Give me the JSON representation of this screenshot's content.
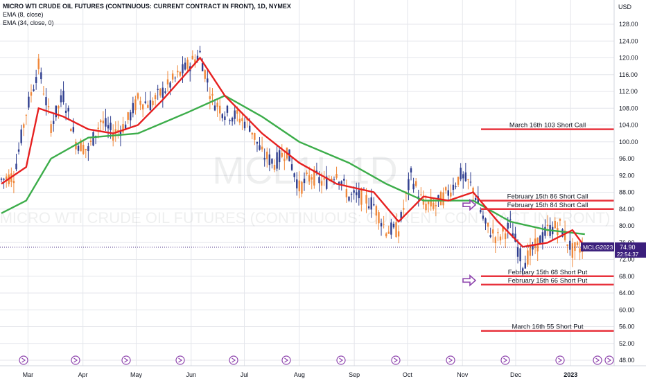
{
  "header": {
    "title": "MICRO WTI CRUDE OIL FUTURES (CONTINUOUS: CURRENT CONTRACT IN FRONT), 1D, NYMEX",
    "ema_fast": "EMA (8, close)",
    "ema_slow": "EMA (34, close, 0)"
  },
  "watermark": {
    "symbol": "MCL1!, 1D",
    "description": "MICRO WTI CRUDE OIL FUTURES (CONTINUOUS: CURRENT CONTRACT IN FRONT)"
  },
  "price_axis": {
    "currency": "USD",
    "ticks": [
      "128.00",
      "124.00",
      "120.00",
      "116.00",
      "112.00",
      "108.00",
      "104.00",
      "100.00",
      "96.00",
      "92.00",
      "88.00",
      "84.00",
      "80.00",
      "76.00",
      "72.00",
      "68.00",
      "64.00",
      "60.00",
      "56.00",
      "52.00",
      "48.00"
    ]
  },
  "time_axis": {
    "labels": [
      "Mar",
      "Apr",
      "May",
      "Jun",
      "Jul",
      "Aug",
      "Sep",
      "Oct",
      "Nov",
      "Dec",
      "2023"
    ]
  },
  "price_badge": {
    "symbol": "MCLG2023",
    "price": "74.90",
    "countdown": "22:54:37"
  },
  "colors": {
    "up": "#2f3e8f",
    "down": "#f0883a",
    "ema_fast": "#e62020",
    "ema_slow": "#3cad4a",
    "level_line": "#e8323c",
    "badge": "#3b1f7c",
    "arrow": "#8e44ad",
    "grid": "#e4e6eb"
  },
  "chart_data": {
    "type": "candlestick",
    "title": "MICRO WTI CRUDE OIL FUTURES (CONTINUOUS: CURRENT CONTRACT IN FRONT), 1D, NYMEX",
    "ylabel": "USD",
    "ylim": [
      47,
      131
    ],
    "x_range": [
      "2022-02-14",
      "2023-01-13"
    ],
    "last_price": 74.9,
    "series": [
      {
        "name": "Price",
        "points": [
          {
            "date": "2022-02-14",
            "close": 91
          },
          {
            "date": "2022-02-21",
            "close": 92
          },
          {
            "date": "2022-02-28",
            "close": 107
          },
          {
            "date": "2022-03-07",
            "close": 118
          },
          {
            "date": "2022-03-14",
            "close": 104
          },
          {
            "date": "2022-03-21",
            "close": 111
          },
          {
            "date": "2022-03-28",
            "close": 100
          },
          {
            "date": "2022-04-04",
            "close": 98
          },
          {
            "date": "2022-04-11",
            "close": 105
          },
          {
            "date": "2022-04-18",
            "close": 102
          },
          {
            "date": "2022-04-25",
            "close": 104
          },
          {
            "date": "2022-05-02",
            "close": 110
          },
          {
            "date": "2022-05-09",
            "close": 109
          },
          {
            "date": "2022-05-16",
            "close": 112
          },
          {
            "date": "2022-05-23",
            "close": 115
          },
          {
            "date": "2022-05-30",
            "close": 118
          },
          {
            "date": "2022-06-06",
            "close": 121
          },
          {
            "date": "2022-06-13",
            "close": 110
          },
          {
            "date": "2022-06-20",
            "close": 107
          },
          {
            "date": "2022-06-27",
            "close": 106
          },
          {
            "date": "2022-07-04",
            "close": 104
          },
          {
            "date": "2022-07-11",
            "close": 97
          },
          {
            "date": "2022-07-18",
            "close": 95
          },
          {
            "date": "2022-07-25",
            "close": 98
          },
          {
            "date": "2022-08-01",
            "close": 89
          },
          {
            "date": "2022-08-08",
            "close": 92
          },
          {
            "date": "2022-08-15",
            "close": 90
          },
          {
            "date": "2022-08-22",
            "close": 93
          },
          {
            "date": "2022-08-29",
            "close": 87
          },
          {
            "date": "2022-09-05",
            "close": 87
          },
          {
            "date": "2022-09-12",
            "close": 85
          },
          {
            "date": "2022-09-19",
            "close": 79
          },
          {
            "date": "2022-09-26",
            "close": 79
          },
          {
            "date": "2022-10-03",
            "close": 92
          },
          {
            "date": "2022-10-10",
            "close": 85
          },
          {
            "date": "2022-10-17",
            "close": 85
          },
          {
            "date": "2022-10-24",
            "close": 88
          },
          {
            "date": "2022-10-31",
            "close": 92
          },
          {
            "date": "2022-11-07",
            "close": 89
          },
          {
            "date": "2022-11-14",
            "close": 80
          },
          {
            "date": "2022-11-21",
            "close": 77
          },
          {
            "date": "2022-11-28",
            "close": 80
          },
          {
            "date": "2022-12-05",
            "close": 71
          },
          {
            "date": "2022-12-12",
            "close": 75
          },
          {
            "date": "2022-12-19",
            "close": 79
          },
          {
            "date": "2022-12-26",
            "close": 80
          },
          {
            "date": "2023-01-02",
            "close": 74
          },
          {
            "date": "2023-01-09",
            "close": 75
          }
        ]
      },
      {
        "name": "EMA (8, close)",
        "points": [
          {
            "date": "2022-02-14",
            "close": 90
          },
          {
            "date": "2022-02-28",
            "close": 94
          },
          {
            "date": "2022-03-07",
            "close": 108
          },
          {
            "date": "2022-03-21",
            "close": 106
          },
          {
            "date": "2022-04-04",
            "close": 103
          },
          {
            "date": "2022-04-18",
            "close": 102
          },
          {
            "date": "2022-05-02",
            "close": 104
          },
          {
            "date": "2022-05-16",
            "close": 110
          },
          {
            "date": "2022-06-06",
            "close": 120
          },
          {
            "date": "2022-06-20",
            "close": 111
          },
          {
            "date": "2022-07-11",
            "close": 102
          },
          {
            "date": "2022-08-01",
            "close": 95
          },
          {
            "date": "2022-08-22",
            "close": 90
          },
          {
            "date": "2022-09-12",
            "close": 88
          },
          {
            "date": "2022-09-26",
            "close": 81
          },
          {
            "date": "2022-10-10",
            "close": 87
          },
          {
            "date": "2022-10-24",
            "close": 86
          },
          {
            "date": "2022-11-07",
            "close": 88
          },
          {
            "date": "2022-11-21",
            "close": 81
          },
          {
            "date": "2022-12-05",
            "close": 75
          },
          {
            "date": "2022-12-19",
            "close": 76
          },
          {
            "date": "2023-01-02",
            "close": 79
          },
          {
            "date": "2023-01-09",
            "close": 75
          }
        ]
      },
      {
        "name": "EMA (34, close, 0)",
        "points": [
          {
            "date": "2022-02-14",
            "close": 83
          },
          {
            "date": "2022-02-28",
            "close": 86
          },
          {
            "date": "2022-03-14",
            "close": 96
          },
          {
            "date": "2022-04-04",
            "close": 101
          },
          {
            "date": "2022-05-02",
            "close": 102
          },
          {
            "date": "2022-05-30",
            "close": 107
          },
          {
            "date": "2022-06-20",
            "close": 111
          },
          {
            "date": "2022-07-11",
            "close": 106
          },
          {
            "date": "2022-08-01",
            "close": 100
          },
          {
            "date": "2022-08-29",
            "close": 95
          },
          {
            "date": "2022-09-19",
            "close": 90
          },
          {
            "date": "2022-10-10",
            "close": 86
          },
          {
            "date": "2022-11-07",
            "close": 86
          },
          {
            "date": "2022-11-28",
            "close": 81
          },
          {
            "date": "2022-12-19",
            "close": 79
          },
          {
            "date": "2023-01-09",
            "close": 78
          }
        ]
      }
    ],
    "horizontal_levels": [
      {
        "label": "March 16th 103 Short Call",
        "value": 103.0,
        "badge": "103.00"
      },
      {
        "label": "February 15th 86 Short Call",
        "value": 86.0,
        "badge": "86.00"
      },
      {
        "label": "February 15th 84 Short Call",
        "value": 84.0,
        "badge": "84.00"
      },
      {
        "label": "February 15th 68 Short Put",
        "value": 68.0,
        "badge": "68.00"
      },
      {
        "label": "February 15th 66 Short Put",
        "value": 66.0,
        "badge": "66.00"
      },
      {
        "label": "March 16th 55 Short Put",
        "value": 55.0,
        "badge": "55.00"
      }
    ],
    "grid": true
  }
}
